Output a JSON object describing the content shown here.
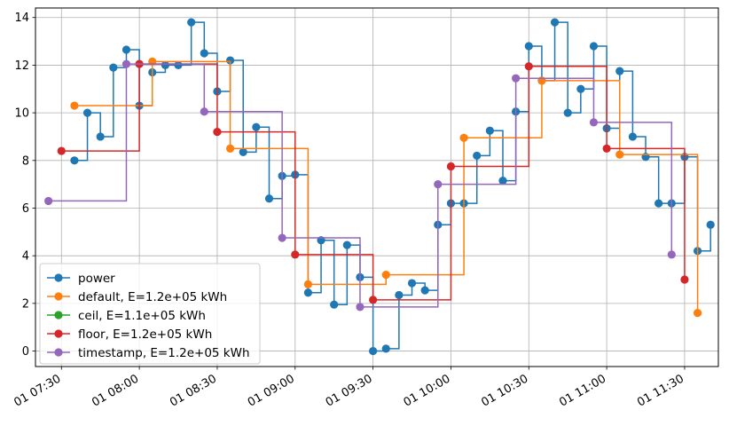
{
  "chart_data": {
    "type": "line",
    "drawstyle": "steps-post",
    "title": "",
    "xlabel": "",
    "ylabel": "",
    "grid": true,
    "legend_position": "lower-left",
    "x_is_time": true,
    "xlim": [
      "07:20",
      "11:43"
    ],
    "ylim": [
      -0.65,
      14.4
    ],
    "y_ticks": [
      0,
      2,
      4,
      6,
      8,
      10,
      12,
      14
    ],
    "x_ticks": [
      {
        "t": "07:30",
        "label": "01 07:30"
      },
      {
        "t": "08:00",
        "label": "01 08:00"
      },
      {
        "t": "08:30",
        "label": "01 08:30"
      },
      {
        "t": "09:00",
        "label": "01 09:00"
      },
      {
        "t": "09:30",
        "label": "01 09:30"
      },
      {
        "t": "10:00",
        "label": "01 10:00"
      },
      {
        "t": "10:30",
        "label": "01 10:30"
      },
      {
        "t": "11:00",
        "label": "01 11:00"
      },
      {
        "t": "11:30",
        "label": "01 11:30"
      }
    ],
    "series": [
      {
        "name": "power",
        "color": "#1f77b4",
        "x": [
          "07:35",
          "07:40",
          "07:45",
          "07:50",
          "07:55",
          "08:00",
          "08:05",
          "08:10",
          "08:15",
          "08:20",
          "08:25",
          "08:30",
          "08:35",
          "08:40",
          "08:45",
          "08:50",
          "08:55",
          "09:00",
          "09:05",
          "09:10",
          "09:15",
          "09:20",
          "09:25",
          "09:30",
          "09:35",
          "09:40",
          "09:45",
          "09:50",
          "09:55",
          "10:00",
          "10:05",
          "10:10",
          "10:15",
          "10:20",
          "10:25",
          "10:30",
          "10:35",
          "10:40",
          "10:45",
          "10:50",
          "10:55",
          "11:00",
          "11:05",
          "11:10",
          "11:15",
          "11:20",
          "11:25",
          "11:30",
          "11:35",
          "11:40"
        ],
        "y": [
          8.0,
          10.0,
          9.0,
          11.9,
          12.65,
          10.3,
          11.7,
          12.0,
          12.0,
          13.8,
          12.5,
          10.9,
          12.2,
          8.35,
          9.4,
          6.4,
          7.35,
          7.4,
          2.45,
          4.65,
          1.95,
          4.45,
          3.1,
          0.0,
          0.1,
          2.35,
          2.85,
          2.55,
          5.3,
          6.2,
          6.2,
          8.2,
          9.25,
          7.15,
          10.05,
          12.8,
          11.35,
          13.8,
          10.0,
          11.0,
          12.8,
          9.35,
          11.75,
          9.0,
          8.15,
          6.2,
          6.2,
          8.15,
          4.2,
          5.3
        ]
      },
      {
        "name": "default, E=1.2e+05 kWh",
        "color": "#ff7f0e",
        "x": [
          "07:35",
          "08:05",
          "08:35",
          "09:05",
          "09:35",
          "10:05",
          "10:35",
          "11:05",
          "11:35"
        ],
        "y": [
          10.3,
          12.15,
          8.5,
          2.8,
          3.2,
          8.95,
          11.35,
          8.25,
          1.6
        ]
      },
      {
        "name": "ceil, E=1.1e+05 kWh",
        "color": "#2ca02c",
        "x": [],
        "y": []
      },
      {
        "name": "floor, E=1.2e+05 kWh",
        "color": "#d62728",
        "x": [
          "07:30",
          "08:00",
          "08:30",
          "09:00",
          "09:30",
          "10:00",
          "10:30",
          "11:00",
          "11:30"
        ],
        "y": [
          8.4,
          12.05,
          9.2,
          4.05,
          2.15,
          7.75,
          11.95,
          8.5,
          3.0
        ]
      },
      {
        "name": "timestamp, E=1.2e+05 kWh",
        "color": "#9467bd",
        "x": [
          "07:25",
          "07:55",
          "08:25",
          "08:55",
          "09:25",
          "09:55",
          "10:25",
          "10:55",
          "11:25"
        ],
        "y": [
          6.3,
          12.05,
          10.05,
          4.75,
          1.85,
          7.0,
          11.45,
          9.6,
          4.05
        ]
      }
    ]
  }
}
